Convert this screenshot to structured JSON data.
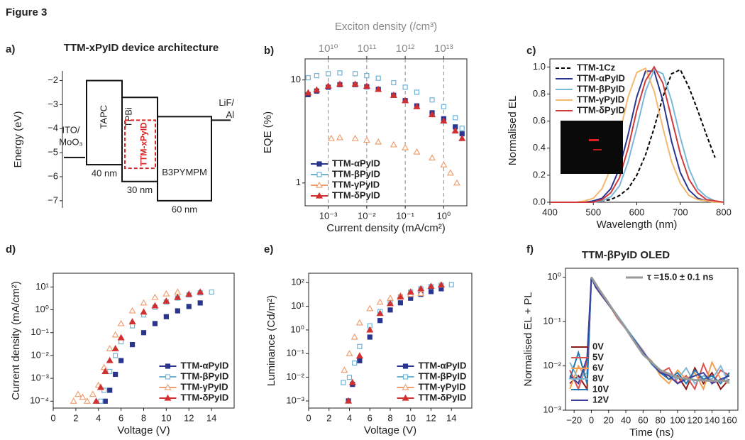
{
  "figure_label": "Figure 3",
  "chart_data": [
    {
      "panel": "a)",
      "type": "energy-diagram",
      "title": "TTM-xPyID device architecture",
      "ylabel": "Energy (eV)",
      "ylim": [
        -7.3,
        -1.6
      ],
      "yticks": [
        {
          "value": -2,
          "label": "−2"
        },
        {
          "value": -3,
          "label": "−3"
        },
        {
          "value": -4,
          "label": "−4"
        },
        {
          "value": -5,
          "label": "−5"
        },
        {
          "value": -6,
          "label": "−6"
        },
        {
          "value": -7,
          "label": "−7"
        }
      ],
      "electrodes": [
        {
          "label": [
            "ITO/",
            "MoO₃"
          ],
          "level": -5.2
        },
        {
          "label": [
            "LiF/",
            "Al"
          ],
          "level": -3.65
        }
      ],
      "layers": [
        {
          "label": "TAPC",
          "top": -2.0,
          "bottom": -5.5,
          "thickness": "40 nm"
        },
        {
          "label": "TPBi",
          "top": -2.7,
          "bottom": -6.2,
          "thickness": "30 nm"
        },
        {
          "label": "B3PYMPM",
          "top": -3.5,
          "bottom": -7.0,
          "thickness": "60 nm"
        }
      ],
      "emitter": {
        "label": "TTM-xPyID",
        "top": -3.65,
        "bottom": -5.65,
        "color": "#d62728"
      }
    },
    {
      "panel": "b)",
      "type": "scatter",
      "xlabel": "Current density (mA/cm²)",
      "ylabel": "EQE (%)",
      "x2label": "Exciton density (/cm³)",
      "xscale": "log",
      "yscale": "log",
      "xlim": [
        0.00025,
        4
      ],
      "ylim": [
        0.6,
        16
      ],
      "x2lim": [
        2500000000,
        40000000000000
      ],
      "xticks": [
        {
          "value": 0.001,
          "label": "10⁻³"
        },
        {
          "value": 0.01,
          "label": "10⁻²"
        },
        {
          "value": 0.1,
          "label": "10⁻¹"
        },
        {
          "value": 1,
          "label": "10⁰"
        }
      ],
      "yticks": [
        1,
        10
      ],
      "x2ticks": [
        {
          "value": 10000000000,
          "label": "10¹⁰"
        },
        {
          "value": 100000000000,
          "label": "10¹¹"
        },
        {
          "value": 1000000000000,
          "label": "10¹²"
        },
        {
          "value": 10000000000000,
          "label": "10¹³"
        }
      ],
      "x2grid": true,
      "legend": "lower left",
      "series": [
        {
          "name": "TTM-αPyID",
          "color": "#2a3590",
          "marker": "filled-square",
          "x": [
            0.0003,
            0.0005,
            0.001,
            0.002,
            0.005,
            0.01,
            0.02,
            0.05,
            0.1,
            0.2,
            0.5,
            1,
            2,
            3
          ],
          "values": [
            7.2,
            7.8,
            8.5,
            9,
            9,
            8.6,
            8.1,
            7.1,
            6.3,
            5.6,
            4.8,
            4.2,
            3.5,
            3.0
          ]
        },
        {
          "name": "TTM-βPyID",
          "color": "#6fb3d6",
          "marker": "open-square",
          "x": [
            0.0003,
            0.0005,
            0.001,
            0.002,
            0.005,
            0.01,
            0.02,
            0.05,
            0.1,
            0.2,
            0.5,
            1,
            2,
            3
          ],
          "values": [
            10.5,
            11,
            11.5,
            11.7,
            11.5,
            11,
            10.4,
            9.4,
            8.5,
            7.6,
            6.4,
            5.5,
            4.3,
            3.4
          ]
        },
        {
          "name": "TTM-γPyID",
          "color": "#f0a070",
          "marker": "open-triangle",
          "x": [
            0.0012,
            0.002,
            0.005,
            0.01,
            0.02,
            0.05,
            0.1,
            0.2,
            0.5,
            1,
            1.5,
            2.2
          ],
          "values": [
            2.7,
            2.75,
            2.7,
            2.6,
            2.5,
            2.35,
            2.2,
            2.0,
            1.75,
            1.5,
            1.25,
            1.0
          ]
        },
        {
          "name": "TTM-δPyID",
          "color": "#d03030",
          "marker": "filled-triangle",
          "x": [
            0.0003,
            0.0005,
            0.001,
            0.002,
            0.005,
            0.01,
            0.02,
            0.05,
            0.1,
            0.2,
            0.5,
            1,
            2,
            3
          ],
          "values": [
            7.5,
            8,
            8.7,
            9.1,
            9.1,
            8.7,
            8.1,
            7.1,
            6.3,
            5.5,
            4.6,
            4.0,
            3.2,
            2.7
          ]
        }
      ]
    },
    {
      "panel": "c)",
      "type": "line",
      "xlabel": "Wavelength (nm)",
      "ylabel": "Normalised EL",
      "xlim": [
        400,
        800
      ],
      "ylim": [
        0,
        1.06
      ],
      "xticks": [
        400,
        500,
        600,
        700,
        800
      ],
      "yticks": [
        {
          "value": 0,
          "label": "0.0"
        },
        0.2,
        0.4,
        0.6,
        0.8,
        {
          "value": 1,
          "label": "1.0"
        }
      ],
      "legend": "upper left",
      "x": [
        400,
        420,
        440,
        460,
        480,
        500,
        520,
        540,
        560,
        580,
        600,
        620,
        640,
        660,
        680,
        700,
        720,
        740,
        760,
        780,
        800
      ],
      "series": [
        {
          "name": "TTM-1Cz",
          "color": "#000000",
          "dash": true,
          "values": [
            0,
            0,
            0,
            0,
            0,
            0,
            0.01,
            0.02,
            0.05,
            0.1,
            0.2,
            0.35,
            0.55,
            0.78,
            0.95,
            0.98,
            0.85,
            0.68,
            0.5,
            0.33,
            null
          ]
        },
        {
          "name": "TTM-αPyID",
          "color": "#2a3590",
          "values": [
            0,
            0,
            0,
            0,
            0,
            0.01,
            0.03,
            0.1,
            0.25,
            0.5,
            0.78,
            0.97,
            0.97,
            0.75,
            0.45,
            0.22,
            0.09,
            0.03,
            0.01,
            0,
            0
          ]
        },
        {
          "name": "TTM-βPyID",
          "color": "#7ab8da",
          "values": [
            0,
            0,
            0,
            0,
            0,
            0,
            0.01,
            0.04,
            0.12,
            0.3,
            0.55,
            0.82,
            0.98,
            0.95,
            0.75,
            0.48,
            0.25,
            0.1,
            0.04,
            0.01,
            0
          ]
        },
        {
          "name": "TTM-γPyID",
          "color": "#f5b870",
          "values": [
            0,
            0,
            0,
            0,
            0.01,
            0.03,
            0.1,
            0.25,
            0.5,
            0.78,
            0.96,
            0.99,
            0.82,
            0.55,
            0.3,
            0.14,
            0.05,
            0.02,
            0.01,
            0,
            0
          ]
        },
        {
          "name": "TTM-δPyID",
          "color": "#d03a3a",
          "values": [
            0,
            0,
            0,
            0,
            0,
            0,
            0.02,
            0.07,
            0.18,
            0.4,
            0.68,
            0.9,
            1.0,
            0.88,
            0.62,
            0.36,
            0.17,
            0.07,
            0.02,
            0.01,
            0
          ]
        }
      ]
    },
    {
      "panel": "d)",
      "type": "scatter",
      "xlabel": "Voltage (V)",
      "ylabel": "Current density (mA/cm²)",
      "yscale": "log",
      "xlim": [
        0,
        16
      ],
      "ylim": [
        5e-05,
        40
      ],
      "xticks": [
        0,
        2,
        4,
        6,
        8,
        10,
        12,
        14
      ],
      "yticks": [
        {
          "value": 0.0001,
          "label": "10⁻⁴"
        },
        {
          "value": 0.001,
          "label": "10⁻³"
        },
        {
          "value": 0.01,
          "label": "10⁻²"
        },
        {
          "value": 0.1,
          "label": "10⁻¹"
        },
        {
          "value": 1,
          "label": "10⁰"
        },
        {
          "value": 10,
          "label": "10¹"
        }
      ],
      "legend": "lower right",
      "series": [
        {
          "name": "TTM-αPyID",
          "color": "#2a3590",
          "marker": "filled-square",
          "x": [
            4.6,
            5,
            5.5,
            6,
            7,
            8,
            9,
            10,
            11,
            12,
            13
          ],
          "values": [
            0.0001,
            0.0003,
            0.0015,
            0.006,
            0.03,
            0.1,
            0.25,
            0.5,
            0.9,
            1.4,
            2
          ]
        },
        {
          "name": "TTM-βPyID",
          "color": "#6fb3d6",
          "marker": "open-square",
          "x": [
            4.2,
            4.5,
            5,
            5.5,
            6,
            7,
            8,
            9,
            10,
            11,
            12,
            13,
            14
          ],
          "values": [
            0.0001,
            0.0003,
            0.002,
            0.01,
            0.04,
            0.2,
            0.6,
            1.3,
            2.2,
            3.3,
            4.5,
            5.5,
            6
          ]
        },
        {
          "name": "TTM-γPyID",
          "color": "#f0a070",
          "marker": "open-triangle",
          "x": [
            1.8,
            2.2,
            2.6,
            3,
            3.5,
            4,
            4.5,
            5,
            5.5,
            6,
            7,
            8,
            9,
            10,
            11
          ],
          "values": [
            0.0001,
            0.0002,
            0.00015,
            0.0001,
            0.0002,
            0.0005,
            0.003,
            0.02,
            0.08,
            0.25,
            0.9,
            2,
            3.5,
            5,
            6
          ]
        },
        {
          "name": "TTM-δPyID",
          "color": "#d03030",
          "marker": "filled-triangle",
          "x": [
            3.8,
            4.2,
            4.6,
            5,
            5.5,
            6,
            7,
            8,
            9,
            10,
            11,
            12,
            13
          ],
          "values": [
            0.0001,
            0.0004,
            0.002,
            0.006,
            0.02,
            0.06,
            0.3,
            0.8,
            1.5,
            2.4,
            3.5,
            4.8,
            6
          ]
        }
      ]
    },
    {
      "panel": "e)",
      "type": "scatter",
      "xlabel": "Voltage (V)",
      "ylabel": "Luminance (Cd/m²)",
      "yscale": "log",
      "xlim": [
        0,
        16
      ],
      "ylim": [
        0.0005,
        250
      ],
      "xticks": [
        0,
        2,
        4,
        6,
        8,
        10,
        12,
        14
      ],
      "yticks": [
        {
          "value": 0.001,
          "label": "10⁻³"
        },
        {
          "value": 0.01,
          "label": "10⁻²"
        },
        {
          "value": 0.1,
          "label": "10⁻¹"
        },
        {
          "value": 1,
          "label": "10⁰"
        },
        {
          "value": 10,
          "label": "10¹"
        },
        {
          "value": 100,
          "label": "10²"
        }
      ],
      "legend": "lower right",
      "series": [
        {
          "name": "TTM-αPyID",
          "color": "#2a3590",
          "marker": "filled-square",
          "x": [
            3.9,
            4.3,
            5,
            6,
            7,
            8,
            9,
            10,
            11,
            12,
            13
          ],
          "values": [
            0.001,
            0.005,
            0.05,
            0.5,
            2.5,
            7,
            14,
            22,
            32,
            42,
            55
          ]
        },
        {
          "name": "TTM-βPyID",
          "color": "#6fb3d6",
          "marker": "open-square",
          "x": [
            3.4,
            4,
            4.5,
            5,
            6,
            7,
            8,
            9,
            10,
            11,
            12,
            13,
            14
          ],
          "values": [
            0.006,
            0.01,
            0.04,
            0.2,
            1.5,
            6,
            14,
            25,
            40,
            55,
            68,
            78,
            82
          ]
        },
        {
          "name": "TTM-γPyID",
          "color": "#f0a070",
          "marker": "open-triangle",
          "x": [
            3.5,
            4,
            4.5,
            5,
            6,
            7,
            8,
            9,
            10,
            11
          ],
          "values": [
            0.02,
            0.1,
            0.5,
            2,
            8,
            15,
            22,
            28,
            32,
            35
          ]
        },
        {
          "name": "TTM-δPyID",
          "color": "#d03030",
          "marker": "filled-triangle",
          "x": [
            3.9,
            4.3,
            5,
            6,
            7,
            8,
            9,
            10,
            11,
            12,
            13
          ],
          "values": [
            0.001,
            0.006,
            0.08,
            1,
            5,
            13,
            25,
            40,
            55,
            70,
            80
          ]
        }
      ]
    },
    {
      "panel": "f)",
      "type": "line",
      "title": "TTM-βPyID OLED",
      "xlabel": "Time (ns)",
      "ylabel": "Normalised EL + PL",
      "yscale": "log",
      "xlim": [
        -30,
        170
      ],
      "ylim": [
        0.001,
        1.6
      ],
      "xticks": [
        {
          "value": -20,
          "label": "−20"
        },
        0,
        20,
        40,
        60,
        80,
        100,
        120,
        140,
        160
      ],
      "yticks": [
        {
          "value": 0.001,
          "label": "10⁻³"
        },
        {
          "value": 0.01,
          "label": "10⁻²"
        },
        {
          "value": 0.1,
          "label": "10⁻¹"
        },
        {
          "value": 1,
          "label": "10⁰"
        }
      ],
      "legend": "lower left",
      "x": [
        -25,
        -15,
        -5,
        0,
        5,
        10,
        20,
        30,
        40,
        50,
        60,
        70,
        80,
        90,
        100,
        110,
        120,
        130,
        140,
        150,
        160
      ],
      "series": [
        {
          "name": "0V",
          "color": "#8b1a1a",
          "values": [
            0.004,
            0.006,
            0.003,
            1,
            0.62,
            0.44,
            0.24,
            0.13,
            0.07,
            0.038,
            0.02,
            0.012,
            0.008,
            0.005,
            0.006,
            0.003,
            0.009,
            0.004,
            0.007,
            0.003,
            0.005
          ]
        },
        {
          "name": "5V",
          "color": "#d9534f",
          "values": [
            0.008,
            0.003,
            0.012,
            1,
            0.6,
            0.45,
            0.25,
            0.12,
            0.068,
            0.04,
            0.022,
            0.011,
            0.007,
            0.009,
            0.004,
            0.006,
            0.003,
            0.011,
            0.004,
            0.008,
            0.006
          ]
        },
        {
          "name": "6V",
          "color": "#f0a050",
          "values": [
            0.003,
            0.01,
            0.005,
            1,
            0.61,
            0.43,
            0.24,
            0.13,
            0.072,
            0.036,
            0.019,
            0.013,
            0.006,
            0.004,
            0.008,
            0.005,
            0.007,
            0.003,
            0.012,
            0.005,
            0.004
          ]
        },
        {
          "name": "8V",
          "color": "#7fb8d8",
          "values": [
            0.012,
            0.005,
            0.007,
            1,
            0.63,
            0.46,
            0.26,
            0.14,
            0.075,
            0.04,
            0.021,
            0.012,
            0.008,
            0.006,
            0.005,
            0.009,
            0.004,
            0.006,
            0.005,
            0.01,
            0.004
          ]
        },
        {
          "name": "10V",
          "color": "#1f77b4",
          "values": [
            0.005,
            0.02,
            0.004,
            1,
            0.62,
            0.45,
            0.25,
            0.13,
            0.07,
            0.039,
            0.02,
            0.011,
            0.007,
            0.005,
            0.007,
            0.004,
            0.008,
            0.005,
            0.006,
            0.004,
            0.007
          ]
        },
        {
          "name": "12V",
          "color": "#3b3fa0",
          "values": [
            0.006,
            0.004,
            0.015,
            1,
            0.6,
            0.44,
            0.24,
            0.13,
            0.069,
            0.037,
            0.02,
            0.012,
            0.007,
            0.006,
            0.004,
            0.005,
            0.006,
            0.007,
            0.004,
            0.005,
            0.006
          ]
        },
        {
          "name": "τ =15.0 ± 0.1 ns",
          "color": "#999999",
          "linewidth": 3,
          "legend": "upper right",
          "x": [
            0,
            10,
            20,
            30,
            40,
            50,
            60,
            80,
            100,
            120,
            140,
            160
          ],
          "values": [
            1,
            0.5,
            0.26,
            0.13,
            0.07,
            0.035,
            0.018,
            0.008,
            0.0055,
            0.0048,
            0.0046,
            0.0046
          ]
        }
      ]
    }
  ]
}
